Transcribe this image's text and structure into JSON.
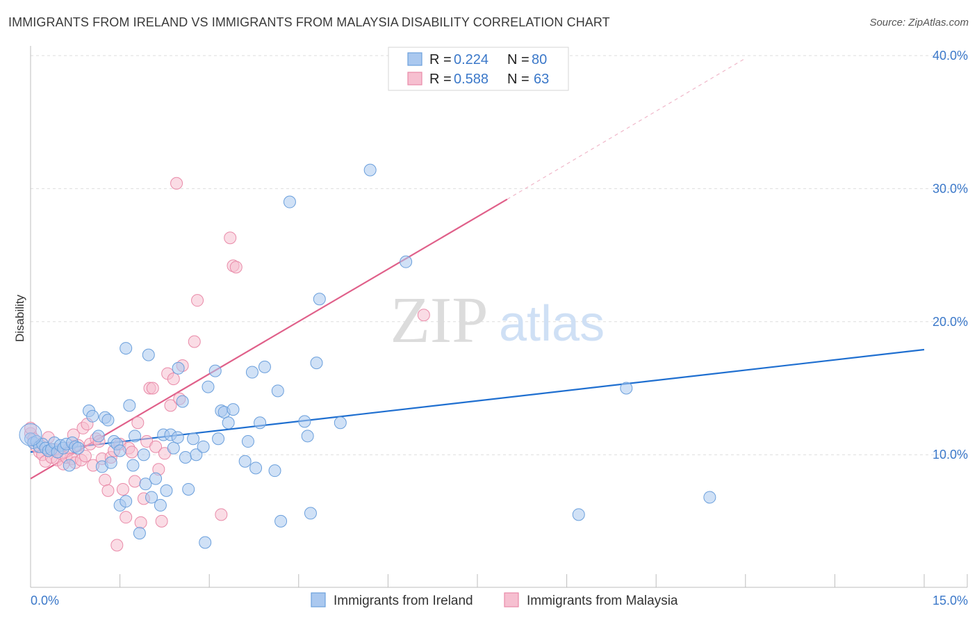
{
  "title": "IMMIGRANTS FROM IRELAND VS IMMIGRANTS FROM MALAYSIA DISABILITY CORRELATION CHART",
  "source": "Source: ZipAtlas.com",
  "watermark": {
    "zip": "ZIP",
    "atlas": "atlas"
  },
  "legend": {
    "r_label": "R =",
    "n_label": "N =",
    "items": [
      {
        "r": "0.224",
        "n": "80"
      },
      {
        "r": "0.588",
        "n": "63"
      }
    ]
  },
  "colors": {
    "ireland_fill": "#aac8ef",
    "ireland_stroke": "#6a9fdc",
    "ireland_line": "#1f6fd0",
    "malaysia_fill": "#f6bfd0",
    "malaysia_stroke": "#e98aa8",
    "malaysia_line": "#e0608a",
    "tick": "#3b78c9",
    "grid": "#dddddd"
  },
  "chart_data": {
    "type": "scatter",
    "ylabel": "Disability",
    "xlim": [
      0,
      15
    ],
    "ylim": [
      0,
      40
    ],
    "x_ticks": [
      "0.0%",
      "15.0%"
    ],
    "y_ticks": [
      {
        "value": 10,
        "label": "10.0%"
      },
      {
        "value": 20,
        "label": "20.0%"
      },
      {
        "value": 30,
        "label": "30.0%"
      },
      {
        "value": 40,
        "label": "40.0%"
      }
    ],
    "series": [
      {
        "name": "Immigrants from Ireland",
        "r": 0.224,
        "n": 80,
        "trend": {
          "x": [
            0,
            15
          ],
          "y": [
            10.2,
            17.9
          ]
        },
        "points": [
          [
            0.0,
            11.2
          ],
          [
            0.05,
            10.9
          ],
          [
            0.1,
            11.0
          ],
          [
            0.15,
            10.6
          ],
          [
            0.2,
            10.8
          ],
          [
            0.25,
            10.5
          ],
          [
            0.3,
            10.3
          ],
          [
            0.35,
            10.4
          ],
          [
            0.4,
            10.9
          ],
          [
            0.45,
            10.2
          ],
          [
            0.5,
            10.7
          ],
          [
            0.55,
            10.5
          ],
          [
            0.6,
            10.8
          ],
          [
            0.65,
            9.2
          ],
          [
            0.7,
            10.9
          ],
          [
            0.75,
            10.6
          ],
          [
            0.8,
            10.5
          ],
          [
            0.98,
            13.3
          ],
          [
            1.04,
            12.9
          ],
          [
            1.14,
            11.4
          ],
          [
            1.2,
            9.1
          ],
          [
            1.25,
            12.8
          ],
          [
            1.3,
            12.6
          ],
          [
            1.35,
            9.4
          ],
          [
            1.4,
            11.0
          ],
          [
            1.45,
            10.8
          ],
          [
            1.5,
            10.3
          ],
          [
            1.5,
            6.2
          ],
          [
            1.6,
            6.5
          ],
          [
            1.6,
            18.0
          ],
          [
            1.66,
            13.7
          ],
          [
            1.72,
            9.2
          ],
          [
            1.75,
            11.4
          ],
          [
            1.83,
            4.1
          ],
          [
            1.9,
            10.0
          ],
          [
            1.93,
            7.8
          ],
          [
            1.98,
            17.5
          ],
          [
            2.03,
            6.8
          ],
          [
            2.1,
            8.2
          ],
          [
            2.18,
            6.2
          ],
          [
            2.23,
            11.5
          ],
          [
            2.28,
            7.3
          ],
          [
            2.35,
            11.5
          ],
          [
            2.4,
            10.5
          ],
          [
            2.47,
            11.3
          ],
          [
            2.48,
            16.5
          ],
          [
            2.55,
            14.0
          ],
          [
            2.6,
            9.8
          ],
          [
            2.65,
            7.4
          ],
          [
            2.73,
            11.2
          ],
          [
            2.78,
            10.0
          ],
          [
            2.9,
            10.6
          ],
          [
            2.93,
            3.4
          ],
          [
            2.98,
            15.1
          ],
          [
            3.1,
            16.3
          ],
          [
            3.15,
            11.2
          ],
          [
            3.2,
            13.3
          ],
          [
            3.25,
            13.2
          ],
          [
            3.32,
            12.4
          ],
          [
            3.4,
            13.4
          ],
          [
            3.6,
            9.5
          ],
          [
            3.65,
            11.0
          ],
          [
            3.72,
            16.2
          ],
          [
            3.78,
            9.0
          ],
          [
            3.85,
            12.4
          ],
          [
            3.93,
            16.6
          ],
          [
            4.1,
            8.8
          ],
          [
            4.15,
            14.8
          ],
          [
            4.2,
            5.0
          ],
          [
            4.35,
            29.0
          ],
          [
            4.6,
            12.5
          ],
          [
            4.65,
            11.4
          ],
          [
            4.7,
            5.6
          ],
          [
            4.8,
            16.9
          ],
          [
            4.85,
            21.7
          ],
          [
            5.2,
            12.4
          ],
          [
            5.7,
            31.4
          ],
          [
            6.3,
            24.5
          ],
          [
            9.2,
            5.5
          ],
          [
            10.0,
            15.0
          ],
          [
            11.4,
            6.8
          ]
        ]
      },
      {
        "name": "Immigrants from Malaysia",
        "r": 0.588,
        "n": 63,
        "trend": {
          "x": [
            0,
            8.0
          ],
          "y": [
            8.2,
            29.2
          ]
        },
        "trend_dashed": {
          "x": [
            8.0,
            12.0
          ],
          "y": [
            29.2,
            39.8
          ]
        },
        "points": [
          [
            0.0,
            11.6
          ],
          [
            0.05,
            11.2
          ],
          [
            0.1,
            10.6
          ],
          [
            0.15,
            10.2
          ],
          [
            0.2,
            10.0
          ],
          [
            0.25,
            9.5
          ],
          [
            0.3,
            10.3
          ],
          [
            0.35,
            9.8
          ],
          [
            0.4,
            10.4
          ],
          [
            0.45,
            9.6
          ],
          [
            0.5,
            10.1
          ],
          [
            0.55,
            9.3
          ],
          [
            0.6,
            9.8
          ],
          [
            0.65,
            10.5
          ],
          [
            0.7,
            9.7
          ],
          [
            0.72,
            11.5
          ],
          [
            0.75,
            9.4
          ],
          [
            0.8,
            10.7
          ],
          [
            0.85,
            9.6
          ],
          [
            0.88,
            12.0
          ],
          [
            0.92,
            9.9
          ],
          [
            0.95,
            12.3
          ],
          [
            1.0,
            10.8
          ],
          [
            1.05,
            9.2
          ],
          [
            1.1,
            11.2
          ],
          [
            1.15,
            11.0
          ],
          [
            1.2,
            9.7
          ],
          [
            1.25,
            8.1
          ],
          [
            1.3,
            7.3
          ],
          [
            1.35,
            9.8
          ],
          [
            1.4,
            10.3
          ],
          [
            1.45,
            3.2
          ],
          [
            1.5,
            10.8
          ],
          [
            1.55,
            7.4
          ],
          [
            1.6,
            5.3
          ],
          [
            1.65,
            10.5
          ],
          [
            1.7,
            10.2
          ],
          [
            1.75,
            8.0
          ],
          [
            1.8,
            12.4
          ],
          [
            1.85,
            4.9
          ],
          [
            1.9,
            6.7
          ],
          [
            1.95,
            11.0
          ],
          [
            2.0,
            15.0
          ],
          [
            2.05,
            15.0
          ],
          [
            2.1,
            10.6
          ],
          [
            2.15,
            8.9
          ],
          [
            2.2,
            5.0
          ],
          [
            2.25,
            10.1
          ],
          [
            2.3,
            16.1
          ],
          [
            2.35,
            13.7
          ],
          [
            2.4,
            15.7
          ],
          [
            2.45,
            30.4
          ],
          [
            2.5,
            14.2
          ],
          [
            2.55,
            16.7
          ],
          [
            2.75,
            18.5
          ],
          [
            2.8,
            21.6
          ],
          [
            3.2,
            5.5
          ],
          [
            3.35,
            26.3
          ],
          [
            3.4,
            24.2
          ],
          [
            3.45,
            24.1
          ],
          [
            6.6,
            20.5
          ],
          [
            0.0,
            12.0
          ],
          [
            0.3,
            11.3
          ]
        ]
      }
    ]
  },
  "bottom_legend": [
    "Immigrants from Ireland",
    "Immigrants from Malaysia"
  ]
}
